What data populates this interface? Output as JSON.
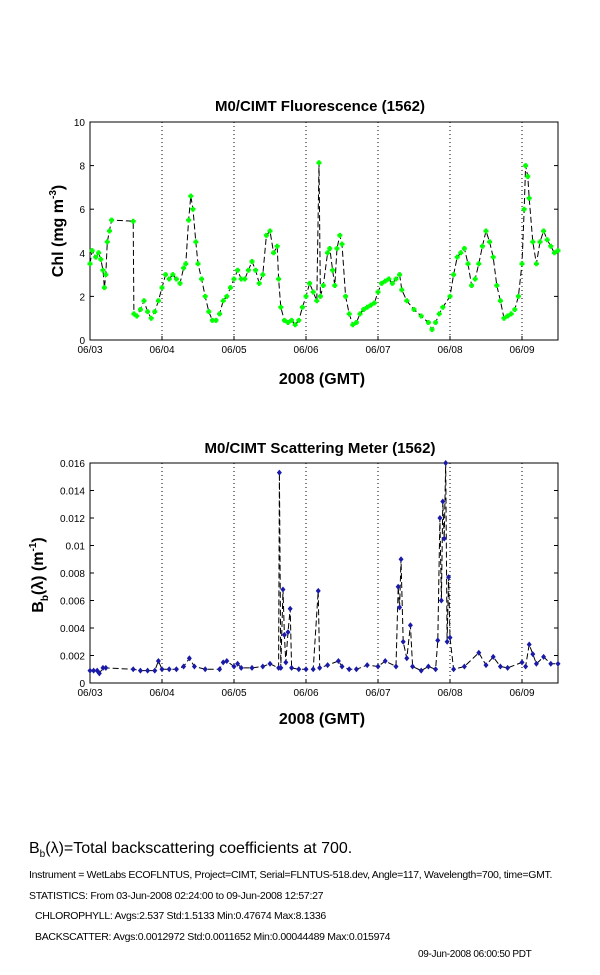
{
  "chart_data": [
    {
      "type": "line",
      "title": "M0/CIMT Fluorescence (1562)",
      "xlabel": "2008 (GMT)",
      "ylabel_parts": [
        "Chl (mg m",
        "-3",
        ")"
      ],
      "x_unit": "days since 06/03 00:00 GMT",
      "xlim": [
        0,
        6.5
      ],
      "ylim": [
        0,
        10
      ],
      "yticks": [
        "0",
        "2",
        "4",
        "6",
        "8",
        "10"
      ],
      "ytick_values": [
        0,
        2,
        4,
        6,
        8,
        10
      ],
      "xticks": [
        "06/03",
        "06/04",
        "06/05",
        "06/06",
        "06/07",
        "06/08",
        "06/09"
      ],
      "xtick_values": [
        0,
        1,
        2,
        3,
        4,
        5,
        6
      ],
      "grid": "vertical dotted at day boundaries",
      "marker_color": "#00ff00",
      "line_color": "#000000",
      "x": [
        0.0,
        0.03,
        0.08,
        0.12,
        0.15,
        0.18,
        0.2,
        0.22,
        0.24,
        0.27,
        0.3,
        0.6,
        0.61,
        0.65,
        0.7,
        0.75,
        0.8,
        0.85,
        0.9,
        0.95,
        1.0,
        1.05,
        1.1,
        1.15,
        1.2,
        1.25,
        1.3,
        1.33,
        1.37,
        1.4,
        1.43,
        1.47,
        1.5,
        1.55,
        1.6,
        1.65,
        1.7,
        1.75,
        1.8,
        1.85,
        1.9,
        1.95,
        2.0,
        2.05,
        2.1,
        2.15,
        2.2,
        2.25,
        2.3,
        2.35,
        2.4,
        2.45,
        2.5,
        2.55,
        2.6,
        2.62,
        2.65,
        2.7,
        2.75,
        2.8,
        2.85,
        2.9,
        2.95,
        3.0,
        3.05,
        3.1,
        3.15,
        3.18,
        3.2,
        3.24,
        3.3,
        3.33,
        3.37,
        3.4,
        3.43,
        3.47,
        3.5,
        3.55,
        3.6,
        3.65,
        3.7,
        3.75,
        3.8,
        3.85,
        3.9,
        3.95,
        4.0,
        4.05,
        4.1,
        4.15,
        4.2,
        4.25,
        4.3,
        4.33,
        4.4,
        4.5,
        4.6,
        4.7,
        4.75,
        4.8,
        4.85,
        4.9,
        5.0,
        5.05,
        5.1,
        5.15,
        5.2,
        5.25,
        5.3,
        5.35,
        5.4,
        5.45,
        5.5,
        5.55,
        5.6,
        5.65,
        5.7,
        5.75,
        5.8,
        5.85,
        5.9,
        5.95,
        6.0,
        6.03,
        6.05,
        6.08,
        6.1,
        6.15,
        6.2,
        6.25,
        6.3,
        6.35,
        6.4,
        6.45,
        6.5
      ],
      "y": [
        3.5,
        4.1,
        3.8,
        4.0,
        3.7,
        3.2,
        2.4,
        3.0,
        4.5,
        5.0,
        5.5,
        5.45,
        1.2,
        1.1,
        1.4,
        1.8,
        1.3,
        1.0,
        1.3,
        1.8,
        2.4,
        3.0,
        2.8,
        3.0,
        2.8,
        2.6,
        3.3,
        3.5,
        5.5,
        6.6,
        6.0,
        4.5,
        3.5,
        2.8,
        2.0,
        1.3,
        0.9,
        0.9,
        1.2,
        1.8,
        2.0,
        2.4,
        2.8,
        3.2,
        2.8,
        2.8,
        3.2,
        3.6,
        3.2,
        2.6,
        3.0,
        4.8,
        5.0,
        4.0,
        4.3,
        2.8,
        1.5,
        0.9,
        0.8,
        0.9,
        0.7,
        0.9,
        1.5,
        2.0,
        2.6,
        2.2,
        1.8,
        8.13,
        2.0,
        2.5,
        4.0,
        4.2,
        3.2,
        2.5,
        4.2,
        4.8,
        4.4,
        2.0,
        1.2,
        0.7,
        0.8,
        1.2,
        1.4,
        1.5,
        1.6,
        1.7,
        2.2,
        2.6,
        2.7,
        2.8,
        2.6,
        2.8,
        3.0,
        2.3,
        1.8,
        1.4,
        1.1,
        0.8,
        0.48,
        0.8,
        1.2,
        1.5,
        2.0,
        3.0,
        3.8,
        4.0,
        4.2,
        3.5,
        2.5,
        2.8,
        3.5,
        4.3,
        5.0,
        4.5,
        3.8,
        2.5,
        1.8,
        1.0,
        1.1,
        1.2,
        1.4,
        2.0,
        3.5,
        6.0,
        8.0,
        7.5,
        6.5,
        4.5,
        3.5,
        4.5,
        5.0,
        4.6,
        4.3,
        4.0,
        4.1
      ]
    },
    {
      "type": "line",
      "title": "M0/CIMT Scattering Meter (1562)",
      "xlabel": "2008 (GMT)",
      "ylabel_parts": [
        "B",
        "b",
        "(λ) (m",
        "-1",
        ")"
      ],
      "x_unit": "days since 06/03 00:00 GMT",
      "xlim": [
        0,
        6.5
      ],
      "ylim": [
        0,
        0.016
      ],
      "yticks": [
        "0",
        "0.002",
        "0.004",
        "0.006",
        "0.008",
        "0.01",
        "0.012",
        "0.014",
        "0.016"
      ],
      "ytick_values": [
        0,
        0.002,
        0.004,
        0.006,
        0.008,
        0.01,
        0.012,
        0.014,
        0.016
      ],
      "xticks": [
        "06/03",
        "06/04",
        "06/05",
        "06/06",
        "06/07",
        "06/08",
        "06/09"
      ],
      "xtick_values": [
        0,
        1,
        2,
        3,
        4,
        5,
        6
      ],
      "grid": "vertical dotted at day boundaries",
      "marker_color": "#1a1aa8",
      "line_color": "#000000",
      "x": [
        0.0,
        0.05,
        0.1,
        0.13,
        0.18,
        0.22,
        0.6,
        0.7,
        0.8,
        0.9,
        0.95,
        1.0,
        1.1,
        1.2,
        1.3,
        1.38,
        1.45,
        1.6,
        1.8,
        1.85,
        1.9,
        2.0,
        2.05,
        2.1,
        2.25,
        2.4,
        2.5,
        2.62,
        2.63,
        2.65,
        2.68,
        2.7,
        2.72,
        2.75,
        2.78,
        2.8,
        2.9,
        3.0,
        3.1,
        3.17,
        3.19,
        3.3,
        3.45,
        3.5,
        3.6,
        3.7,
        3.85,
        4.0,
        4.1,
        4.25,
        4.28,
        4.3,
        4.32,
        4.35,
        4.4,
        4.45,
        4.48,
        4.6,
        4.7,
        4.8,
        4.83,
        4.86,
        4.88,
        4.9,
        4.92,
        4.94,
        4.96,
        4.98,
        5.0,
        5.05,
        5.2,
        5.4,
        5.5,
        5.6,
        5.7,
        5.8,
        6.0,
        6.05,
        6.1,
        6.15,
        6.2,
        6.3,
        6.4,
        6.5
      ],
      "y": [
        0.0009,
        0.0009,
        0.0009,
        0.0007,
        0.0011,
        0.0011,
        0.001,
        0.0009,
        0.0009,
        0.0009,
        0.0016,
        0.001,
        0.001,
        0.001,
        0.0012,
        0.0018,
        0.0012,
        0.001,
        0.001,
        0.0015,
        0.0016,
        0.0012,
        0.0014,
        0.0011,
        0.0011,
        0.0012,
        0.0014,
        0.0011,
        0.0153,
        0.0011,
        0.0068,
        0.0035,
        0.0015,
        0.0037,
        0.0054,
        0.0011,
        0.001,
        0.001,
        0.001,
        0.0067,
        0.0011,
        0.0013,
        0.0016,
        0.0012,
        0.001,
        0.001,
        0.0013,
        0.0012,
        0.0016,
        0.0012,
        0.007,
        0.0055,
        0.009,
        0.003,
        0.0018,
        0.0042,
        0.0012,
        0.0009,
        0.0012,
        0.001,
        0.0031,
        0.012,
        0.006,
        0.0132,
        0.0105,
        0.016,
        0.003,
        0.0077,
        0.0033,
        0.001,
        0.0012,
        0.0022,
        0.0013,
        0.0019,
        0.0012,
        0.0011,
        0.0015,
        0.0012,
        0.0028,
        0.0021,
        0.0014,
        0.0019,
        0.0014,
        0.0014
      ]
    }
  ],
  "footer": {
    "definition_b": "B",
    "definition_sub": "b",
    "definition_rest": "(λ)=Total backscattering coefficients at 700.",
    "instrument": "Instrument = WetLabs ECOFLNTUS, Project=CIMT, Serial=FLNTUS-518.dev, Angle=117, Wavelength=700, time=GMT.",
    "statistics": "STATISTICS: From 03-Jun-2008 02:24:00  to  09-Jun-2008 12:57:27",
    "chlorophyll": "CHLOROPHYLL: Avgs:2.537  Std:1.5133  Min:0.47674  Max:8.1336",
    "backscatter": "BACKSCATTER: Avgs:0.0012972  Std:0.0011652  Min:0.00044489  Max:0.015974",
    "timestamp": "09-Jun-2008 06:00:50 PDT"
  }
}
